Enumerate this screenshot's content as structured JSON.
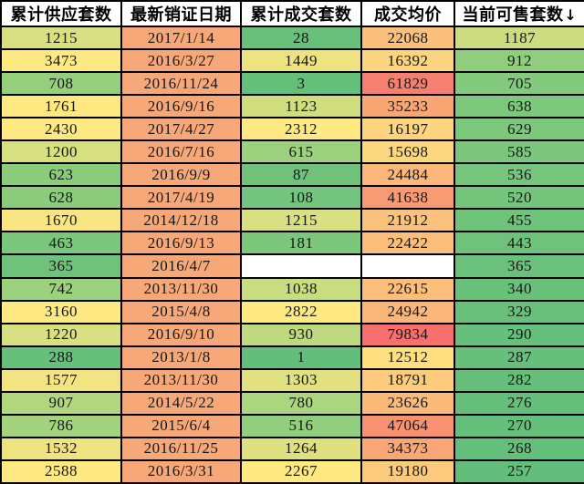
{
  "table": {
    "headers": [
      "累计供应套数",
      "最新销证日期",
      "累计成交套数",
      "成交均价",
      "当前可售套数"
    ],
    "sort_indicator": "↓",
    "sorted_column": "当前可售套数",
    "column_keys": [
      "supply-total",
      "latest-permit-date",
      "sold-total",
      "avg-price",
      "available-now"
    ],
    "colors": {
      "border": "#000000",
      "header_bg": "#ffffff",
      "date_column_bg": "#f6a878",
      "scale_green": "#63be7b",
      "scale_yellow": "#ffe983",
      "scale_red": "#f8696b",
      "empty_cell_bg": "#ffffff"
    },
    "rows": [
      [
        {
          "t": "1215",
          "bg": "#d8e081"
        },
        {
          "t": "2017/1/14",
          "bg": "#f6a878"
        },
        {
          "t": "28",
          "bg": "#68c07b"
        },
        {
          "t": "22068",
          "bg": "#fbc17c"
        },
        {
          "t": "1187",
          "bg": "#cddc7f"
        }
      ],
      [
        {
          "t": "3473",
          "bg": "#ffe983"
        },
        {
          "t": "2016/3/27",
          "bg": "#f6a878"
        },
        {
          "t": "1449",
          "bg": "#eee381"
        },
        {
          "t": "16392",
          "bg": "#fdd47f"
        },
        {
          "t": "912",
          "bg": "#90ce7d"
        }
      ],
      [
        {
          "t": "708",
          "bg": "#95cf7d"
        },
        {
          "t": "2016/11/24",
          "bg": "#f6a878"
        },
        {
          "t": "3",
          "bg": "#64bf7b"
        },
        {
          "t": "61829",
          "bg": "#f5806f"
        },
        {
          "t": "705",
          "bg": "#84ca7c"
        }
      ],
      [
        {
          "t": "1761",
          "bg": "#fde882"
        },
        {
          "t": "2016/9/16",
          "bg": "#f6a878"
        },
        {
          "t": "1123",
          "bg": "#d1de80"
        },
        {
          "t": "35233",
          "bg": "#f9a675"
        },
        {
          "t": "638",
          "bg": "#7dc87c"
        }
      ],
      [
        {
          "t": "2430",
          "bg": "#ffe983"
        },
        {
          "t": "2017/4/27",
          "bg": "#f6a878"
        },
        {
          "t": "2312",
          "bg": "#fee983"
        },
        {
          "t": "16197",
          "bg": "#fdd57f"
        },
        {
          "t": "629",
          "bg": "#7dc87c"
        }
      ],
      [
        {
          "t": "1200",
          "bg": "#d7e081"
        },
        {
          "t": "2016/7/16",
          "bg": "#f6a878"
        },
        {
          "t": "615",
          "bg": "#9cd17d"
        },
        {
          "t": "15698",
          "bg": "#fdd780"
        },
        {
          "t": "585",
          "bg": "#7ac67c"
        }
      ],
      [
        {
          "t": "623",
          "bg": "#8acb7c"
        },
        {
          "t": "2016/9/9",
          "bg": "#f6a878"
        },
        {
          "t": "87",
          "bg": "#70c27b"
        },
        {
          "t": "24484",
          "bg": "#fbb87a"
        },
        {
          "t": "536",
          "bg": "#76c57c"
        }
      ],
      [
        {
          "t": "628",
          "bg": "#8acb7c"
        },
        {
          "t": "2017/4/19",
          "bg": "#f6a878"
        },
        {
          "t": "108",
          "bg": "#73c47c"
        },
        {
          "t": "41638",
          "bg": "#f89a73"
        },
        {
          "t": "520",
          "bg": "#75c47c"
        }
      ],
      [
        {
          "t": "1670",
          "bg": "#f9e682"
        },
        {
          "t": "2014/12/18",
          "bg": "#f6a878"
        },
        {
          "t": "1215",
          "bg": "#d8e081"
        },
        {
          "t": "21912",
          "bg": "#fcc17c"
        },
        {
          "t": "455",
          "bg": "#70c37b"
        }
      ],
      [
        {
          "t": "463",
          "bg": "#79c67c"
        },
        {
          "t": "2016/9/13",
          "bg": "#f6a878"
        },
        {
          "t": "181",
          "bg": "#7cc77c"
        },
        {
          "t": "22422",
          "bg": "#fbbf7b"
        },
        {
          "t": "443",
          "bg": "#6fc27b"
        }
      ],
      [
        {
          "t": "365",
          "bg": "#6fc27b"
        },
        {
          "t": "2016/4/7",
          "bg": "#f6a878"
        },
        {
          "t": "",
          "bg": "#ffffff"
        },
        {
          "t": "",
          "bg": "#ffffff"
        },
        {
          "t": "365",
          "bg": "#6bc17b"
        }
      ],
      [
        {
          "t": "742",
          "bg": "#9cd17d"
        },
        {
          "t": "2013/11/30",
          "bg": "#f6a878"
        },
        {
          "t": "1038",
          "bg": "#c8dc80"
        },
        {
          "t": "22615",
          "bg": "#fbbf7b"
        },
        {
          "t": "340",
          "bg": "#69c07b"
        }
      ],
      [
        {
          "t": "3160",
          "bg": "#ffe983"
        },
        {
          "t": "2015/4/8",
          "bg": "#f6a878"
        },
        {
          "t": "2822",
          "bg": "#ffe983"
        },
        {
          "t": "24942",
          "bg": "#fbb679"
        },
        {
          "t": "329",
          "bg": "#68c07b"
        }
      ],
      [
        {
          "t": "1220",
          "bg": "#d9e081"
        },
        {
          "t": "2016/9/10",
          "bg": "#f6a878"
        },
        {
          "t": "930",
          "bg": "#bed97f"
        },
        {
          "t": "79834",
          "bg": "#f7706d"
        },
        {
          "t": "290",
          "bg": "#66bf7b"
        }
      ],
      [
        {
          "t": "288",
          "bg": "#66c07b"
        },
        {
          "t": "2013/1/8",
          "bg": "#f6a878"
        },
        {
          "t": "1",
          "bg": "#63be7b"
        },
        {
          "t": "12512",
          "bg": "#fee081"
        },
        {
          "t": "287",
          "bg": "#66bf7b"
        }
      ],
      [
        {
          "t": "1577",
          "bg": "#f2e482"
        },
        {
          "t": "2013/11/30",
          "bg": "#f6a878"
        },
        {
          "t": "1303",
          "bg": "#e2e181"
        },
        {
          "t": "18791",
          "bg": "#fccb7e"
        },
        {
          "t": "282",
          "bg": "#65bf7b"
        }
      ],
      [
        {
          "t": "907",
          "bg": "#b3d77f"
        },
        {
          "t": "2014/5/22",
          "bg": "#f6a878"
        },
        {
          "t": "780",
          "bg": "#abd57e"
        },
        {
          "t": "23626",
          "bg": "#fbba7a"
        },
        {
          "t": "276",
          "bg": "#65bf7b"
        }
      ],
      [
        {
          "t": "786",
          "bg": "#a3d37e"
        },
        {
          "t": "2015/6/4",
          "bg": "#f6a878"
        },
        {
          "t": "516",
          "bg": "#91ce7d"
        },
        {
          "t": "47064",
          "bg": "#f89270"
        },
        {
          "t": "270",
          "bg": "#64bf7b"
        }
      ],
      [
        {
          "t": "1532",
          "bg": "#efe381"
        },
        {
          "t": "2016/11/25",
          "bg": "#f6a878"
        },
        {
          "t": "1264",
          "bg": "#dfe181"
        },
        {
          "t": "34373",
          "bg": "#f9a776"
        },
        {
          "t": "268",
          "bg": "#64bf7b"
        }
      ],
      [
        {
          "t": "2588",
          "bg": "#ffe983"
        },
        {
          "t": "2016/3/31",
          "bg": "#f6a878"
        },
        {
          "t": "2267",
          "bg": "#fee983"
        },
        {
          "t": "19180",
          "bg": "#fcca7d"
        },
        {
          "t": "257",
          "bg": "#63be7b"
        }
      ]
    ]
  }
}
